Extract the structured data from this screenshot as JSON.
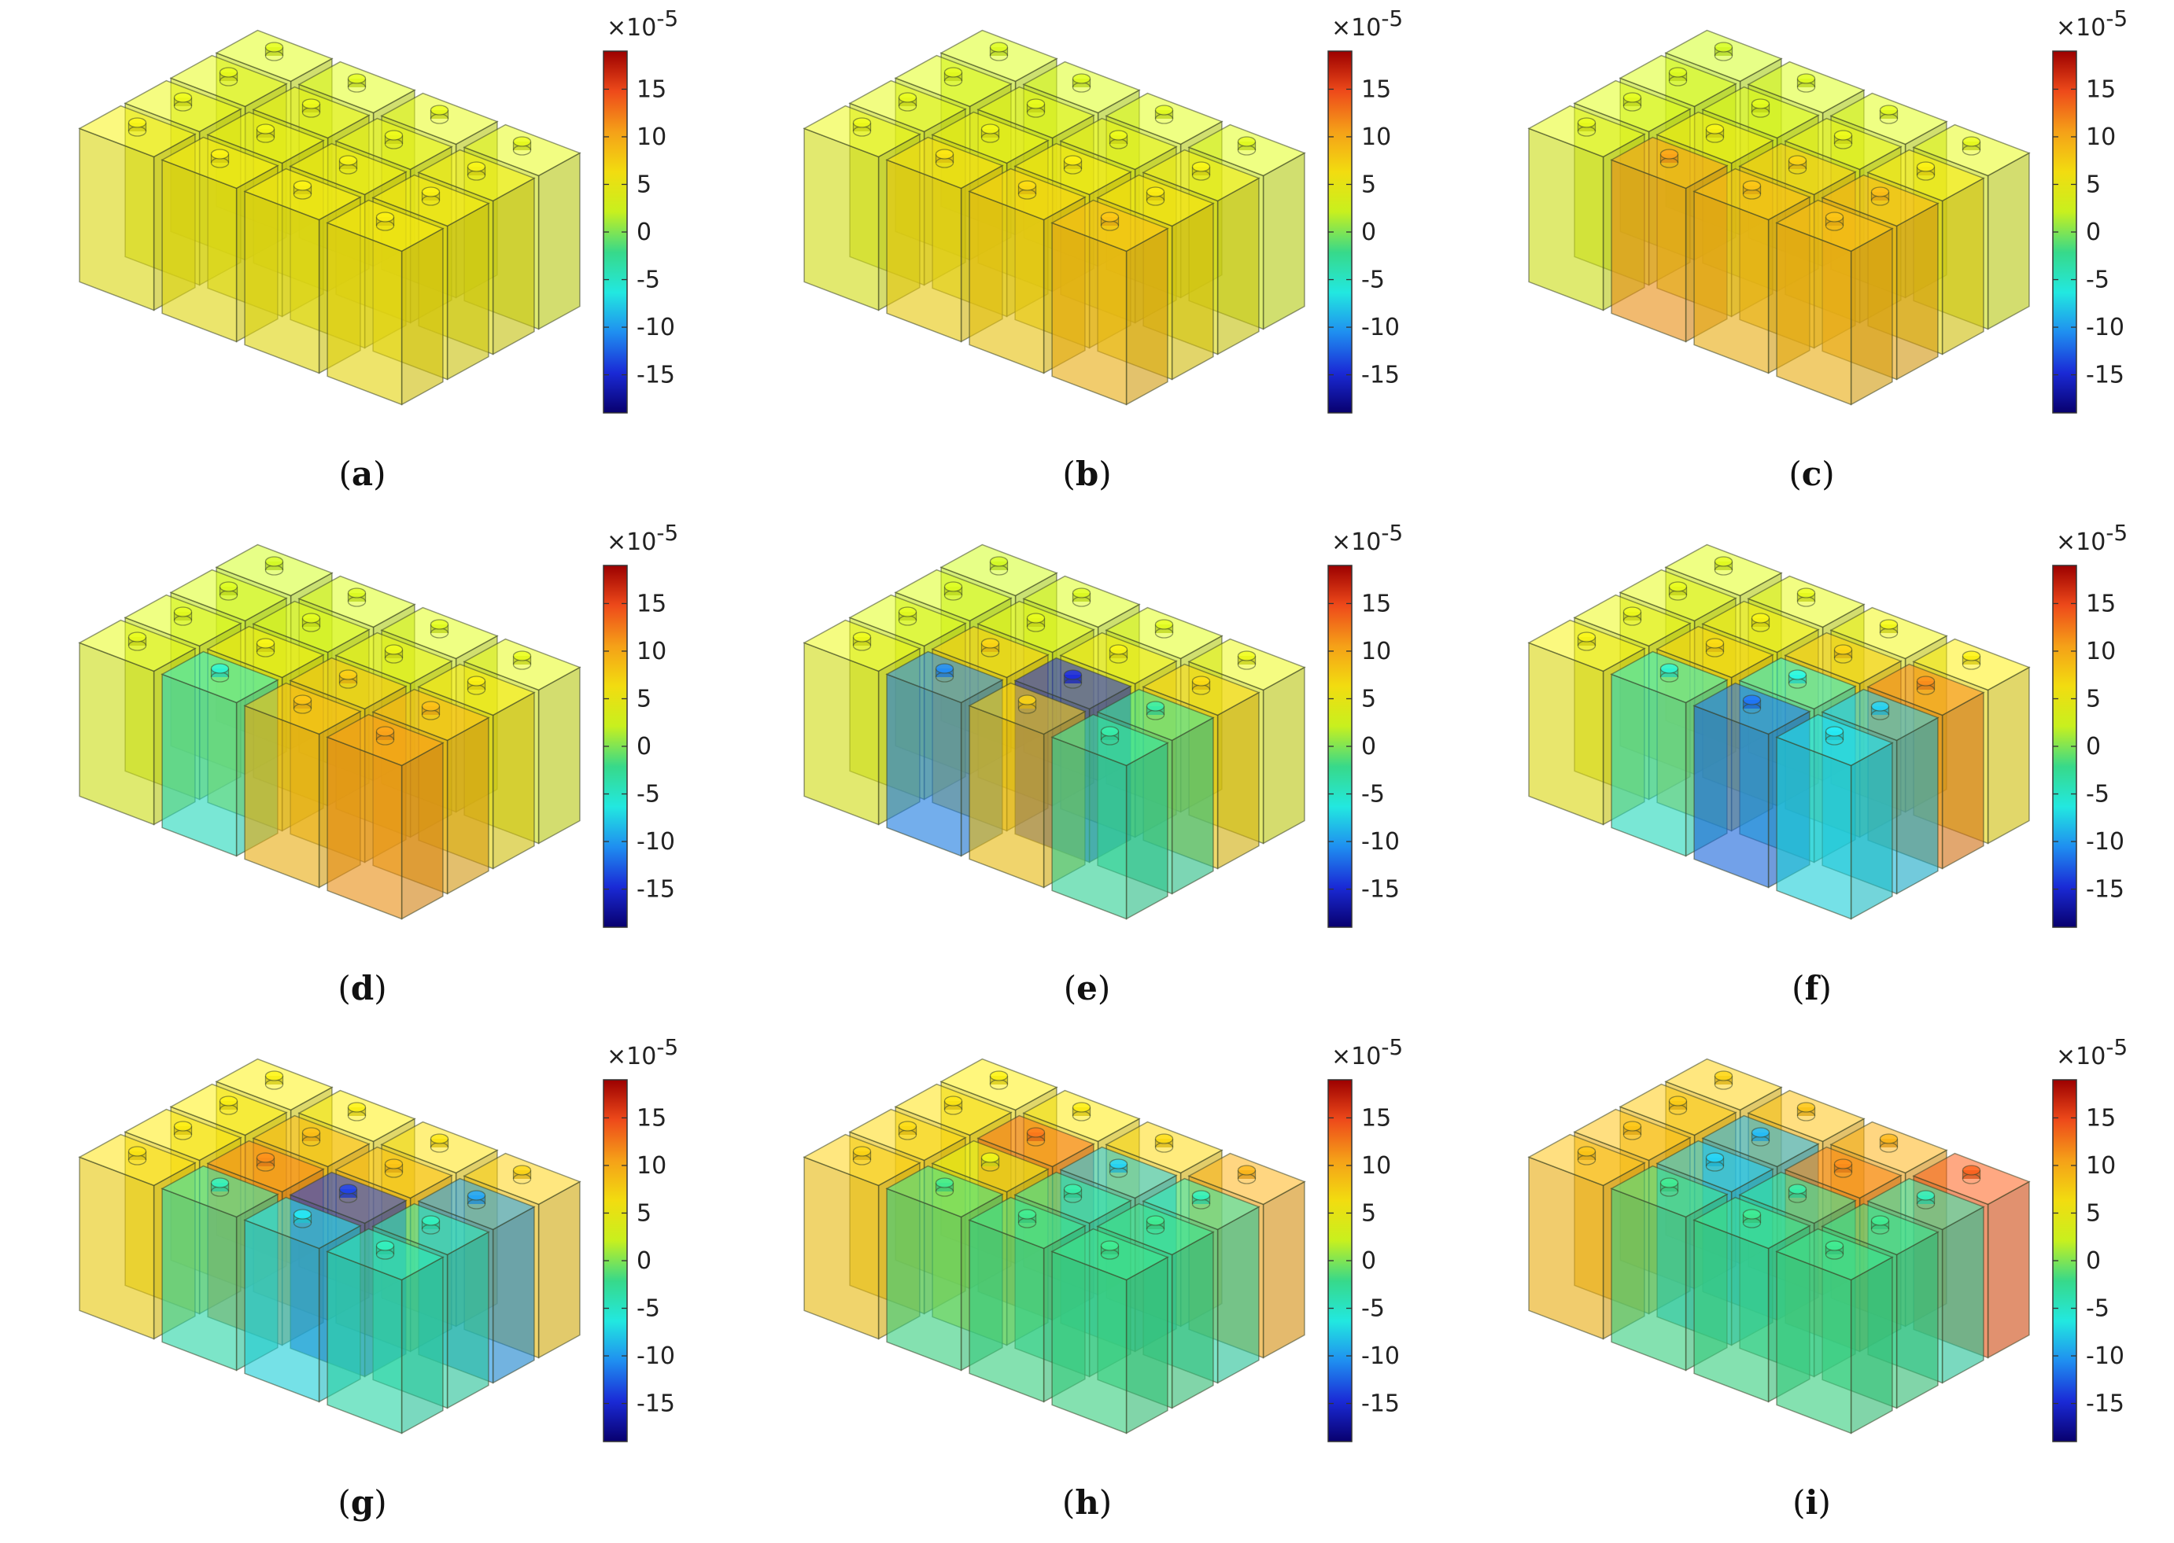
{
  "figure": {
    "colorbar": {
      "multiplier": "×10",
      "exponent": "-5",
      "ticks": [
        "15",
        "10",
        "5",
        "0",
        "-5",
        "-10",
        "-15"
      ],
      "tick_values": [
        15,
        10,
        5,
        0,
        -5,
        -10,
        -15
      ],
      "range": [
        -19,
        19
      ],
      "stops": [
        "#08006e",
        "#1a2ad6",
        "#1f8ef0",
        "#22e8e0",
        "#37d98a",
        "#c8f01e",
        "#f2dc10",
        "#f5a018",
        "#ee4a1a",
        "#9c0000"
      ]
    },
    "panels": [
      {
        "label": "a",
        "values": [
          [
            3,
            3,
            3.5,
            3.5
          ],
          [
            3.5,
            4,
            4,
            5
          ],
          [
            4,
            4.5,
            5,
            5.5
          ],
          [
            5,
            5.5,
            5.5,
            6
          ]
        ]
      },
      {
        "label": "b",
        "values": [
          [
            2.5,
            2.5,
            3,
            3
          ],
          [
            3,
            3.5,
            4,
            5
          ],
          [
            3.5,
            4.5,
            6,
            6.5
          ],
          [
            4,
            7,
            7.5,
            9
          ]
        ]
      },
      {
        "label": "c",
        "values": [
          [
            2,
            2.5,
            3,
            3.5
          ],
          [
            2.5,
            3,
            4,
            6
          ],
          [
            3,
            5,
            8,
            9.5
          ],
          [
            3.5,
            11,
            9,
            9
          ]
        ]
      },
      {
        "label": "d",
        "values": [
          [
            2,
            2.5,
            3,
            3.5
          ],
          [
            2.5,
            3,
            4,
            6
          ],
          [
            3,
            5,
            8.5,
            9.5
          ],
          [
            3.5,
            -5,
            9,
            11
          ]
        ]
      },
      {
        "label": "e",
        "values": [
          [
            2,
            2.5,
            3,
            4
          ],
          [
            2.5,
            3.5,
            5,
            7.5
          ],
          [
            3,
            8,
            -15,
            -3
          ],
          [
            4,
            -11,
            8,
            -3
          ]
        ]
      },
      {
        "label": "f",
        "values": [
          [
            3,
            3.5,
            4.5,
            6
          ],
          [
            3.5,
            5,
            8,
            12
          ],
          [
            4,
            7.5,
            -6,
            -8
          ],
          [
            5,
            -5,
            -12,
            -7
          ]
        ]
      },
      {
        "label": "g",
        "values": [
          [
            5.5,
            6,
            7,
            8
          ],
          [
            6,
            9.5,
            9,
            -10
          ],
          [
            6.5,
            12,
            -14,
            -4
          ],
          [
            7,
            -4,
            -7,
            -4
          ]
        ]
      },
      {
        "label": "h",
        "values": [
          [
            6,
            6.5,
            7.5,
            10
          ],
          [
            7,
            13,
            -8,
            -4
          ],
          [
            7.5,
            4,
            -3,
            -2
          ],
          [
            8,
            -2,
            -2,
            -2
          ]
        ]
      },
      {
        "label": "i",
        "values": [
          [
            8,
            9,
            10,
            14
          ],
          [
            8.5,
            -9,
            12,
            -4
          ],
          [
            9,
            -8,
            -3,
            -2
          ],
          [
            9,
            -2,
            -2,
            -2
          ]
        ]
      }
    ]
  }
}
